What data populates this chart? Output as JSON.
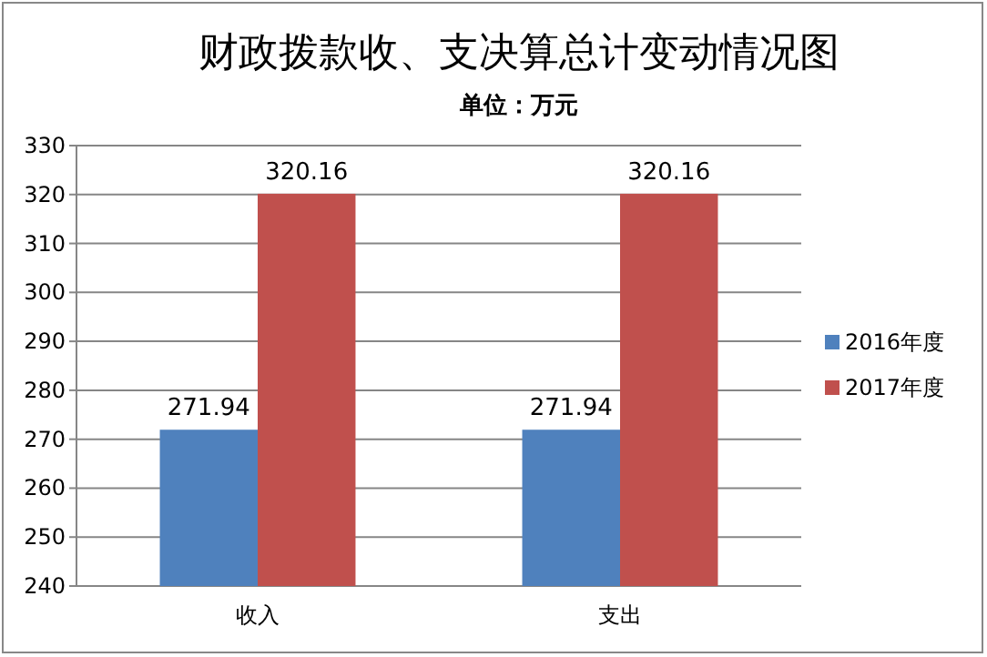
{
  "chart_data": {
    "type": "bar",
    "title": "财政拨款收、支决算总计变动情况图",
    "subtitle": "单位：万元",
    "categories": [
      "收入",
      "支出"
    ],
    "series": [
      {
        "name": "2016年度",
        "color": "#4f81bd",
        "values": [
          271.94,
          271.94
        ]
      },
      {
        "name": "2017年度",
        "color": "#c0504d",
        "values": [
          320.16,
          320.16
        ]
      }
    ],
    "ylim": [
      240,
      330
    ],
    "yticks": [
      240,
      250,
      260,
      270,
      280,
      290,
      300,
      310,
      320,
      330
    ],
    "grid": "y",
    "legend": "right",
    "data_labels": true
  }
}
